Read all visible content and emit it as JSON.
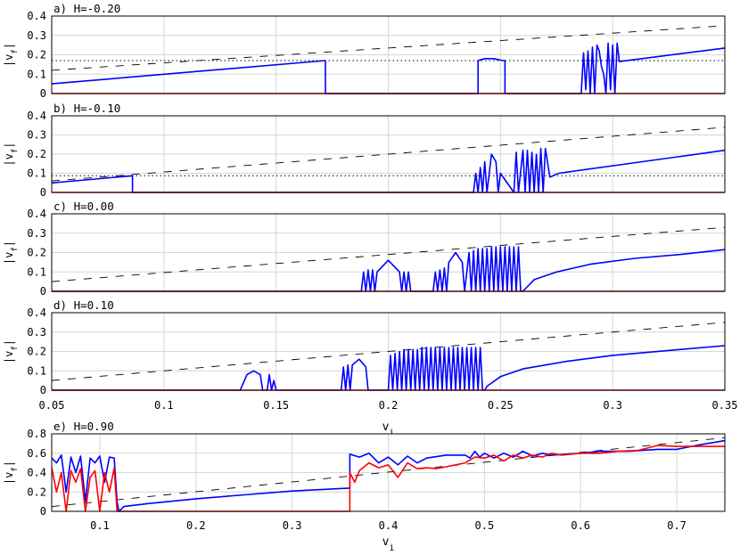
{
  "chart_data": [
    {
      "type": "line",
      "title": "a) H=-0.20",
      "xlabel": "",
      "ylabel": "|v_f|",
      "xlim": [
        0.05,
        0.35
      ],
      "ylim": [
        0,
        0.4
      ],
      "xticks": [],
      "yticks": [
        "0",
        "0.1",
        "0.2",
        "0.3",
        "0.4"
      ],
      "grid": true,
      "reference_lines": {
        "dashed": {
          "x": [
            0.05,
            0.35
          ],
          "y": [
            0.12,
            0.35
          ]
        },
        "dotted_y": 0.17
      },
      "series": [
        {
          "color": "#0000ff",
          "x": [
            0.05,
            0.172,
            0.172,
            0.24,
            0.24,
            0.243,
            0.247,
            0.251,
            0.252,
            0.252,
            0.286,
            0.287,
            0.288,
            0.289,
            0.29,
            0.291,
            0.292,
            0.293,
            0.294,
            0.295,
            0.296,
            0.297,
            0.298,
            0.299,
            0.3,
            0.301,
            0.302,
            0.303,
            0.35
          ],
          "y": [
            0.05,
            0.17,
            0.0,
            0.0,
            0.17,
            0.18,
            0.18,
            0.17,
            0.17,
            0.0,
            0.0,
            0.21,
            0.02,
            0.22,
            0.0,
            0.24,
            0.0,
            0.25,
            0.22,
            0.14,
            0.1,
            0.0,
            0.26,
            0.02,
            0.25,
            0.0,
            0.26,
            0.165,
            0.235
          ]
        },
        {
          "color": "#ff0000",
          "x": [
            0.05,
            0.35
          ],
          "y": [
            0,
            0
          ]
        }
      ]
    },
    {
      "type": "line",
      "title": "b) H=-0.10",
      "xlabel": "",
      "ylabel": "|v_f|",
      "xlim": [
        0.05,
        0.35
      ],
      "ylim": [
        0,
        0.4
      ],
      "xticks": [],
      "yticks": [
        "0",
        "0.1",
        "0.2",
        "0.3",
        "0.4"
      ],
      "grid": true,
      "reference_lines": {
        "dashed": {
          "x": [
            0.05,
            0.35
          ],
          "y": [
            0.06,
            0.34
          ]
        },
        "dotted_y": 0.087
      },
      "series": [
        {
          "color": "#0000ff",
          "x": [
            0.05,
            0.086,
            0.086,
            0.238,
            0.239,
            0.24,
            0.241,
            0.242,
            0.243,
            0.244,
            0.246,
            0.248,
            0.249,
            0.25,
            0.256,
            0.257,
            0.258,
            0.26,
            0.261,
            0.262,
            0.263,
            0.264,
            0.265,
            0.266,
            0.267,
            0.268,
            0.269,
            0.27,
            0.272,
            0.276,
            0.35
          ],
          "y": [
            0.05,
            0.087,
            0.0,
            0.0,
            0.1,
            0.0,
            0.13,
            0.0,
            0.16,
            0.0,
            0.2,
            0.16,
            0.0,
            0.1,
            0.0,
            0.21,
            0.0,
            0.22,
            0.0,
            0.22,
            0.0,
            0.21,
            0.0,
            0.2,
            0.0,
            0.23,
            0.0,
            0.23,
            0.08,
            0.1,
            0.22
          ]
        },
        {
          "color": "#ff0000",
          "x": [
            0.05,
            0.35
          ],
          "y": [
            0,
            0
          ]
        }
      ]
    },
    {
      "type": "line",
      "title": "c) H=0.00",
      "xlabel": "",
      "ylabel": "|v_f|",
      "xlim": [
        0.05,
        0.35
      ],
      "ylim": [
        0,
        0.4
      ],
      "xticks": [],
      "yticks": [
        "0",
        "0.1",
        "0.2",
        "0.3",
        "0.4"
      ],
      "grid": true,
      "reference_lines": {
        "dashed": {
          "x": [
            0.05,
            0.35
          ],
          "y": [
            0.05,
            0.33
          ]
        }
      },
      "series": [
        {
          "color": "#0000ff",
          "x": [
            0.05,
            0.188,
            0.189,
            0.19,
            0.191,
            0.192,
            0.193,
            0.194,
            0.195,
            0.2,
            0.205,
            0.206,
            0.207,
            0.208,
            0.209,
            0.21,
            0.22,
            0.221,
            0.222,
            0.223,
            0.224,
            0.225,
            0.226,
            0.227,
            0.23,
            0.233,
            0.234,
            0.236,
            0.237,
            0.238,
            0.239,
            0.24,
            0.241,
            0.242,
            0.243,
            0.244,
            0.245,
            0.246,
            0.247,
            0.248,
            0.249,
            0.25,
            0.251,
            0.252,
            0.253,
            0.254,
            0.255,
            0.256,
            0.257,
            0.258,
            0.259,
            0.26,
            0.265,
            0.275,
            0.29,
            0.31,
            0.33,
            0.35
          ],
          "y": [
            0.0,
            0.0,
            0.1,
            0.0,
            0.11,
            0.0,
            0.11,
            0.0,
            0.1,
            0.16,
            0.1,
            0.0,
            0.1,
            0.0,
            0.1,
            0.0,
            0.0,
            0.1,
            0.0,
            0.11,
            0.0,
            0.12,
            0.0,
            0.15,
            0.2,
            0.15,
            0.0,
            0.2,
            0.0,
            0.21,
            0.0,
            0.22,
            0.0,
            0.22,
            0.0,
            0.22,
            0.0,
            0.23,
            0.0,
            0.23,
            0.0,
            0.23,
            0.0,
            0.23,
            0.0,
            0.23,
            0.0,
            0.23,
            0.0,
            0.23,
            0.0,
            0.0,
            0.06,
            0.1,
            0.14,
            0.17,
            0.19,
            0.215
          ]
        },
        {
          "color": "#ff0000",
          "x": [
            0.05,
            0.35
          ],
          "y": [
            0,
            0
          ]
        }
      ]
    },
    {
      "type": "line",
      "title": "d) H=0.10",
      "xlabel": "v_i",
      "ylabel": "|v_f|",
      "xlim": [
        0.05,
        0.35
      ],
      "ylim": [
        0,
        0.4
      ],
      "xticks": [
        "0.05",
        "0.1",
        "0.15",
        "0.2",
        "0.25",
        "0.3",
        "0.35"
      ],
      "yticks": [
        "0",
        "0.1",
        "0.2",
        "0.3",
        "0.4"
      ],
      "grid": true,
      "reference_lines": {
        "dashed": {
          "x": [
            0.05,
            0.35
          ],
          "y": [
            0.05,
            0.35
          ]
        }
      },
      "series": [
        {
          "color": "#0000ff",
          "x": [
            0.05,
            0.134,
            0.137,
            0.14,
            0.143,
            0.144,
            0.146,
            0.147,
            0.148,
            0.149,
            0.15,
            0.151,
            0.179,
            0.18,
            0.181,
            0.182,
            0.183,
            0.184,
            0.187,
            0.19,
            0.191,
            0.2,
            0.201,
            0.202,
            0.203,
            0.204,
            0.205,
            0.206,
            0.207,
            0.208,
            0.209,
            0.21,
            0.211,
            0.212,
            0.213,
            0.214,
            0.215,
            0.216,
            0.217,
            0.218,
            0.219,
            0.22,
            0.221,
            0.222,
            0.223,
            0.224,
            0.225,
            0.226,
            0.227,
            0.228,
            0.229,
            0.23,
            0.231,
            0.232,
            0.233,
            0.234,
            0.235,
            0.236,
            0.237,
            0.238,
            0.239,
            0.24,
            0.241,
            0.242,
            0.243,
            0.244,
            0.25,
            0.26,
            0.28,
            0.3,
            0.33,
            0.35
          ],
          "y": [
            0.0,
            0.0,
            0.08,
            0.1,
            0.08,
            0.0,
            0.0,
            0.08,
            0.0,
            0.05,
            0.0,
            0.0,
            0.0,
            0.12,
            0.0,
            0.13,
            0.0,
            0.13,
            0.16,
            0.12,
            0.0,
            0.0,
            0.18,
            0.0,
            0.19,
            0.0,
            0.2,
            0.0,
            0.21,
            0.0,
            0.21,
            0.0,
            0.21,
            0.0,
            0.21,
            0.0,
            0.22,
            0.0,
            0.22,
            0.0,
            0.22,
            0.0,
            0.22,
            0.0,
            0.22,
            0.0,
            0.22,
            0.0,
            0.22,
            0.0,
            0.22,
            0.0,
            0.22,
            0.0,
            0.22,
            0.0,
            0.22,
            0.0,
            0.22,
            0.0,
            0.22,
            0.0,
            0.22,
            0.0,
            0.0,
            0.02,
            0.07,
            0.11,
            0.15,
            0.18,
            0.21,
            0.23
          ]
        },
        {
          "color": "#ff0000",
          "x": [
            0.05,
            0.35
          ],
          "y": [
            0,
            0
          ]
        }
      ]
    },
    {
      "type": "line",
      "title": "e) H=0.90",
      "xlabel": "v_i",
      "ylabel": "|v_f|",
      "xlim": [
        0.05,
        0.75
      ],
      "ylim": [
        0,
        0.8
      ],
      "xticks": [
        "0.1",
        "0.2",
        "0.3",
        "0.4",
        "0.5",
        "0.6",
        "0.7"
      ],
      "yticks": [
        "0",
        "0.2",
        "0.4",
        "0.6",
        "0.8"
      ],
      "grid": true,
      "reference_lines": {
        "dashed": {
          "x": [
            0.05,
            0.75
          ],
          "y": [
            0.05,
            0.76
          ]
        }
      },
      "series": [
        {
          "color": "#0000ff",
          "x": [
            0.05,
            0.055,
            0.06,
            0.065,
            0.07,
            0.075,
            0.08,
            0.085,
            0.09,
            0.095,
            0.1,
            0.105,
            0.11,
            0.115,
            0.118,
            0.12,
            0.125,
            0.15,
            0.2,
            0.25,
            0.3,
            0.36,
            0.36,
            0.37,
            0.38,
            0.39,
            0.4,
            0.41,
            0.42,
            0.43,
            0.44,
            0.46,
            0.48,
            0.485,
            0.49,
            0.495,
            0.5,
            0.51,
            0.52,
            0.53,
            0.54,
            0.55,
            0.56,
            0.57,
            0.6,
            0.62,
            0.65,
            0.68,
            0.7,
            0.72,
            0.75
          ],
          "y": [
            0.55,
            0.5,
            0.58,
            0.2,
            0.56,
            0.4,
            0.57,
            0.1,
            0.55,
            0.5,
            0.57,
            0.3,
            0.56,
            0.55,
            0.1,
            0.0,
            0.05,
            0.08,
            0.13,
            0.17,
            0.21,
            0.24,
            0.59,
            0.56,
            0.6,
            0.5,
            0.56,
            0.48,
            0.57,
            0.5,
            0.55,
            0.58,
            0.58,
            0.55,
            0.62,
            0.56,
            0.6,
            0.55,
            0.6,
            0.56,
            0.62,
            0.57,
            0.6,
            0.58,
            0.6,
            0.62,
            0.62,
            0.64,
            0.64,
            0.68,
            0.73
          ]
        },
        {
          "color": "#ff0000",
          "x": [
            0.05,
            0.055,
            0.06,
            0.065,
            0.07,
            0.075,
            0.08,
            0.085,
            0.09,
            0.095,
            0.1,
            0.105,
            0.11,
            0.115,
            0.118,
            0.12,
            0.2,
            0.3,
            0.36,
            0.36,
            0.365,
            0.37,
            0.38,
            0.39,
            0.4,
            0.41,
            0.42,
            0.43,
            0.44,
            0.45,
            0.46,
            0.48,
            0.49,
            0.5,
            0.51,
            0.52,
            0.53,
            0.54,
            0.55,
            0.56,
            0.57,
            0.58,
            0.6,
            0.62,
            0.64,
            0.66,
            0.68,
            0.7,
            0.75
          ],
          "y": [
            0.45,
            0.2,
            0.4,
            0.0,
            0.42,
            0.3,
            0.44,
            0.0,
            0.35,
            0.42,
            0.0,
            0.4,
            0.2,
            0.45,
            0.0,
            0.0,
            0.0,
            0.0,
            0.0,
            0.4,
            0.3,
            0.42,
            0.5,
            0.45,
            0.48,
            0.35,
            0.5,
            0.44,
            0.45,
            0.44,
            0.46,
            0.5,
            0.56,
            0.55,
            0.58,
            0.52,
            0.58,
            0.55,
            0.58,
            0.56,
            0.6,
            0.58,
            0.6,
            0.6,
            0.62,
            0.63,
            0.68,
            0.67,
            0.67
          ]
        }
      ]
    }
  ]
}
